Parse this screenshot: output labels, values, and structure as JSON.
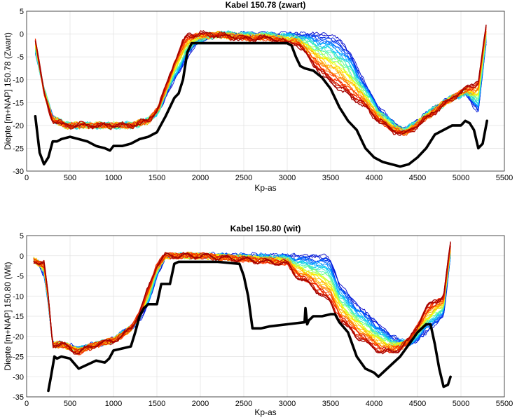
{
  "chart_data": [
    {
      "type": "line",
      "title": "Kabel 150.78 (zwart)",
      "xlabel": "Kp-as",
      "ylabel": "Diepte [m+NAP] 150.78 (Zwart)",
      "xlim": [
        0,
        5500
      ],
      "ylim": [
        -30,
        5
      ],
      "xticks": [
        "0",
        "500",
        "1000",
        "1500",
        "2000",
        "2500",
        "3000",
        "3500",
        "4000",
        "4500",
        "5000",
        "5500"
      ],
      "yticks": [
        "5",
        "0",
        "-5",
        "-10",
        "-15",
        "-20",
        "-25",
        "-30"
      ],
      "grid": true,
      "colormap": "jet",
      "colormap_colors": [
        "#0000c8",
        "#0050ff",
        "#00c8ff",
        "#60ffa0",
        "#ffff00",
        "#ffa000",
        "#ff3000",
        "#a00000"
      ],
      "survey_start": {
        "x": [
          100,
          200,
          300,
          450,
          600,
          800,
          1000,
          1200,
          1400,
          1520,
          1700,
          1860,
          1950,
          2200,
          2500,
          2800,
          3000,
          3100,
          3200,
          3400,
          3600,
          3750,
          3900,
          4050,
          4200,
          4350,
          4500,
          4700,
          4900,
          5050,
          5150,
          5200,
          5300
        ],
        "y": [
          -4,
          -12,
          -18,
          -20,
          -20,
          -20,
          -20,
          -20,
          -19,
          -17,
          -10,
          -5,
          -2,
          0,
          0,
          0,
          0,
          0,
          0,
          0,
          -1,
          -5,
          -11,
          -16,
          -19,
          -21,
          -19,
          -16,
          -14,
          -13,
          -16,
          -17,
          0
        ]
      },
      "survey_end": {
        "x": [
          100,
          200,
          300,
          450,
          600,
          800,
          1000,
          1200,
          1400,
          1520,
          1700,
          1820,
          1860,
          2100,
          2500,
          2800,
          3000,
          3100,
          3200,
          3400,
          3600,
          3750,
          3900,
          4050,
          4200,
          4350,
          4500,
          4700,
          4900,
          5050,
          5150,
          5200,
          5300
        ],
        "y": [
          -1,
          -13,
          -19,
          -20,
          -20,
          -20,
          -20,
          -20,
          -19,
          -16,
          -6,
          -1,
          0,
          0,
          -1,
          -1,
          -2,
          -2,
          -4,
          -9,
          -12,
          -14,
          -16,
          -19,
          -21,
          -22,
          -20,
          -17,
          -14,
          -12,
          -11,
          -10,
          3
        ]
      },
      "series": [
        {
          "name": "",
          "color": "#000000",
          "x": [
            100,
            150,
            200,
            250,
            300,
            350,
            400,
            500,
            600,
            700,
            800,
            900,
            960,
            1000,
            1100,
            1200,
            1300,
            1400,
            1500,
            1600,
            1700,
            1750,
            1800,
            1850,
            1900,
            2000,
            2500,
            3000,
            3050,
            3100,
            3150,
            3200,
            3300,
            3400,
            3500,
            3600,
            3700,
            3800,
            3900,
            4000,
            4100,
            4200,
            4300,
            4400,
            4500,
            4600,
            4700,
            4800,
            4900,
            5000,
            5050,
            5100,
            5150,
            5200,
            5250,
            5300
          ],
          "y": [
            -18,
            -26,
            -28.5,
            -27,
            -23.5,
            -23.5,
            -23,
            -22.5,
            -23,
            -23.5,
            -24.5,
            -25,
            -25.5,
            -24.5,
            -24.5,
            -24,
            -23,
            -22.5,
            -21.5,
            -18,
            -14,
            -13,
            -10,
            -4,
            -2,
            -2,
            -2,
            -2,
            -2.5,
            -5,
            -7,
            -7.5,
            -8,
            -9.5,
            -12,
            -16,
            -19,
            -21,
            -25,
            -27,
            -28,
            -28.5,
            -29,
            -28.5,
            -27,
            -25,
            -22,
            -21,
            -20,
            -20,
            -19,
            -19.5,
            -21,
            -25,
            -24,
            -19
          ]
        }
      ]
    },
    {
      "type": "line",
      "title": "Kabel 150.80 (wit)",
      "xlabel": "Kp-as",
      "ylabel": "Diepte [m+NAP] 150.80 (Wit)",
      "xlim": [
        0,
        5500
      ],
      "ylim": [
        -35,
        5
      ],
      "xticks": [
        "0",
        "500",
        "1000",
        "1500",
        "2000",
        "2500",
        "3000",
        "3500",
        "4000",
        "4500",
        "5000",
        "5500"
      ],
      "yticks": [
        "5",
        "0",
        "-5",
        "-10",
        "-15",
        "-20",
        "-25",
        "-30",
        "-35"
      ],
      "grid": true,
      "colormap": "jet",
      "colormap_colors": [
        "#0000c8",
        "#0050ff",
        "#00c8ff",
        "#60ffa0",
        "#ffff00",
        "#ffa000",
        "#ff3000",
        "#a00000"
      ],
      "survey_start": {
        "x": [
          80,
          150,
          200,
          250,
          300,
          400,
          600,
          800,
          1000,
          1100,
          1200,
          1300,
          1400,
          1500,
          1600,
          1700,
          2000,
          2500,
          3000,
          3300,
          3450,
          3500,
          3600,
          3800,
          4000,
          4100,
          4200,
          4300,
          4400,
          4500,
          4600,
          4700,
          4800,
          4880
        ],
        "y": [
          -1,
          -2,
          -5,
          -12,
          -22,
          -22,
          -23,
          -22,
          -21,
          -19,
          -18,
          -16,
          -12,
          -5,
          0,
          0,
          0,
          0,
          0,
          0,
          0,
          -1,
          -7,
          -12,
          -16,
          -18,
          -20,
          -21,
          -22,
          -21,
          -19,
          -17,
          -15,
          0
        ]
      },
      "survey_end": {
        "x": [
          80,
          150,
          200,
          250,
          300,
          400,
          600,
          800,
          1000,
          1100,
          1200,
          1300,
          1400,
          1500,
          1600,
          1700,
          2000,
          2500,
          3000,
          3100,
          3300,
          3500,
          3600,
          3800,
          4000,
          4100,
          4200,
          4300,
          4400,
          4500,
          4600,
          4700,
          4800,
          4880
        ],
        "y": [
          -1,
          -2,
          -2,
          -10,
          -22,
          -22,
          -24,
          -22,
          -21,
          -20,
          -18,
          -14,
          -8,
          -2,
          0,
          0,
          0,
          -1,
          -2,
          -5,
          -8,
          -12,
          -16,
          -20,
          -23,
          -24,
          -24,
          -23,
          -21,
          -17,
          -13,
          -11,
          -10,
          3
        ]
      },
      "series": [
        {
          "name": "",
          "color": "#000000",
          "x": [
            250,
            280,
            320,
            350,
            400,
            500,
            600,
            700,
            800,
            900,
            950,
            1000,
            1100,
            1200,
            1250,
            1300,
            1350,
            1400,
            1450,
            1500,
            1550,
            1600,
            1650,
            1700,
            1750,
            2000,
            2200,
            2450,
            2500,
            2550,
            2600,
            2700,
            2800,
            3000,
            3200,
            3210,
            3230,
            3250,
            3300,
            3400,
            3500,
            3550,
            3600,
            3700,
            3800,
            3900,
            4000,
            4050,
            4100,
            4200,
            4300,
            4400,
            4500,
            4600,
            4650,
            4700,
            4750,
            4800,
            4850,
            4880
          ],
          "y": [
            -33.5,
            -30,
            -25,
            -25.5,
            -25,
            -25.5,
            -28,
            -27,
            -26,
            -26.5,
            -25.5,
            -23.5,
            -23,
            -22.5,
            -19,
            -15,
            -13,
            -12,
            -12,
            -12,
            -7,
            -7,
            -7,
            -2,
            -1.5,
            -1.5,
            -1.5,
            -2,
            -5,
            -10,
            -18,
            -18,
            -17.5,
            -17,
            -16.5,
            -13,
            -17,
            -16,
            -15,
            -15,
            -14.5,
            -14.5,
            -16.5,
            -19,
            -25,
            -28,
            -29,
            -30,
            -29,
            -27,
            -25,
            -22,
            -19,
            -17,
            -17,
            -22,
            -28,
            -32.5,
            -32,
            -30
          ]
        }
      ]
    }
  ]
}
